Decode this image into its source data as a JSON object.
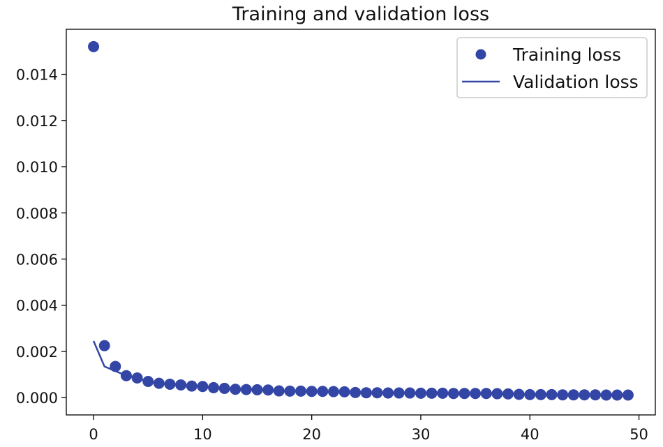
{
  "chart_data": {
    "type": "line",
    "title": "Training and validation loss",
    "xlabel": "",
    "ylabel": "",
    "xlim": [
      -2.5,
      51.5
    ],
    "ylim": [
      -0.00075,
      0.01595
    ],
    "xticks": [
      0,
      10,
      20,
      30,
      40,
      50
    ],
    "yticks": [
      0.0,
      0.002,
      0.004,
      0.006,
      0.008,
      0.01,
      0.012,
      0.014
    ],
    "xtick_labels": [
      "0",
      "10",
      "20",
      "30",
      "40",
      "50"
    ],
    "ytick_labels": [
      "0.000",
      "0.002",
      "0.004",
      "0.006",
      "0.008",
      "0.010",
      "0.012",
      "0.014"
    ],
    "grid": false,
    "legend_position": "top-right",
    "colors": {
      "series": "#3346a6",
      "axes": "#000000",
      "background": "#ffffff"
    },
    "series": [
      {
        "name": "Training loss",
        "style": "markers",
        "x": [
          0,
          1,
          2,
          3,
          4,
          5,
          6,
          7,
          8,
          9,
          10,
          11,
          12,
          13,
          14,
          15,
          16,
          17,
          18,
          19,
          20,
          21,
          22,
          23,
          24,
          25,
          26,
          27,
          28,
          29,
          30,
          31,
          32,
          33,
          34,
          35,
          36,
          37,
          38,
          39,
          40,
          41,
          42,
          43,
          44,
          45,
          46,
          47,
          48,
          49
        ],
        "values": [
          0.0152,
          0.00225,
          0.00135,
          0.00095,
          0.00085,
          0.0007,
          0.00062,
          0.00058,
          0.00055,
          0.0005,
          0.00048,
          0.00043,
          0.0004,
          0.00036,
          0.00035,
          0.00034,
          0.00033,
          0.00029,
          0.00028,
          0.00028,
          0.00027,
          0.00027,
          0.00026,
          0.00025,
          0.00022,
          0.00021,
          0.00021,
          0.0002,
          0.0002,
          0.0002,
          0.00019,
          0.00019,
          0.00019,
          0.00018,
          0.00018,
          0.00018,
          0.00018,
          0.00017,
          0.00016,
          0.00014,
          0.00013,
          0.00013,
          0.00013,
          0.00012,
          0.00012,
          0.00012,
          0.00012,
          0.00011,
          0.00011,
          0.00011
        ]
      },
      {
        "name": "Validation loss",
        "style": "line",
        "x": [
          0,
          1,
          2,
          3,
          4,
          5,
          6,
          7,
          8,
          9,
          10,
          11,
          12,
          13,
          14,
          15,
          16,
          17,
          18,
          19,
          20,
          21,
          22,
          23,
          24,
          25,
          26,
          27,
          28,
          29,
          30,
          31,
          32,
          33,
          34,
          35,
          36,
          37,
          38,
          39,
          40,
          41,
          42,
          43,
          44,
          45,
          46,
          47,
          48,
          49
        ],
        "values": [
          0.00245,
          0.00135,
          0.00115,
          0.00095,
          0.00085,
          0.0007,
          0.00062,
          0.00058,
          0.00055,
          0.0005,
          0.00048,
          0.00043,
          0.0004,
          0.00036,
          0.00035,
          0.00034,
          0.00033,
          0.00029,
          0.00028,
          0.00028,
          0.00027,
          0.00027,
          0.00026,
          0.00025,
          0.00022,
          0.00021,
          0.00021,
          0.0002,
          0.0002,
          0.0002,
          0.00019,
          0.00019,
          0.00019,
          0.00018,
          0.00018,
          0.00018,
          0.00018,
          0.00017,
          0.00016,
          0.00014,
          0.00013,
          0.00013,
          0.00013,
          0.00012,
          0.00012,
          0.00012,
          0.00012,
          0.00011,
          0.00011,
          0.00011
        ]
      }
    ]
  }
}
